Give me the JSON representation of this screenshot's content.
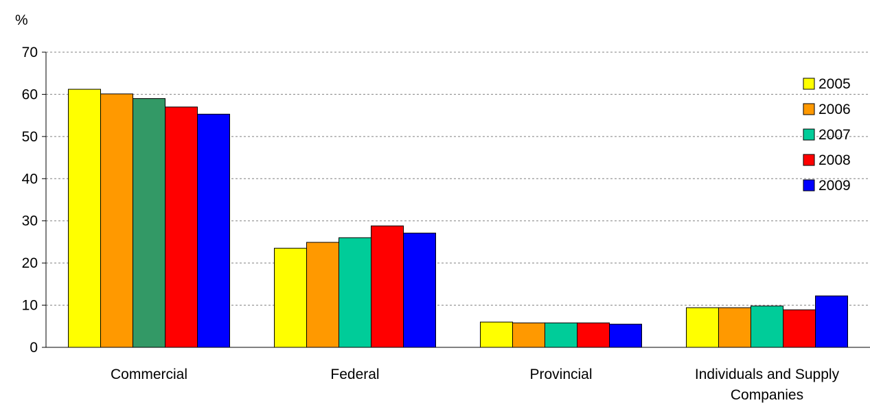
{
  "chart_data": {
    "type": "bar",
    "title": "",
    "xlabel": "",
    "ylabel": "%",
    "ylim": [
      0,
      70
    ],
    "yticks": [
      0,
      10,
      20,
      30,
      40,
      50,
      60,
      70
    ],
    "grid": "horizontal dashed",
    "legend_position": "right",
    "categories": [
      "Commercial",
      "Federal",
      "Provincial",
      "Individuals and Supply Companies"
    ],
    "series": [
      {
        "name": "2005",
        "color": "#FFFF00",
        "values": [
          61.2,
          23.5,
          6.0,
          9.4
        ]
      },
      {
        "name": "2006",
        "color": "#FF9900",
        "values": [
          60.1,
          24.9,
          5.8,
          9.4
        ]
      },
      {
        "name": "2007",
        "color": "#00CC99",
        "values": [
          59.0,
          26.0,
          5.8,
          9.8
        ]
      },
      {
        "name": "2008",
        "color": "#FF0000",
        "values": [
          57.0,
          28.8,
          5.8,
          8.9
        ]
      },
      {
        "name": "2009",
        "color": "#0000FF",
        "values": [
          55.3,
          27.1,
          5.5,
          12.2
        ]
      }
    ],
    "bar_color_overrides": [
      {
        "series": "2007",
        "category": "Commercial",
        "color": "#339966"
      }
    ]
  }
}
